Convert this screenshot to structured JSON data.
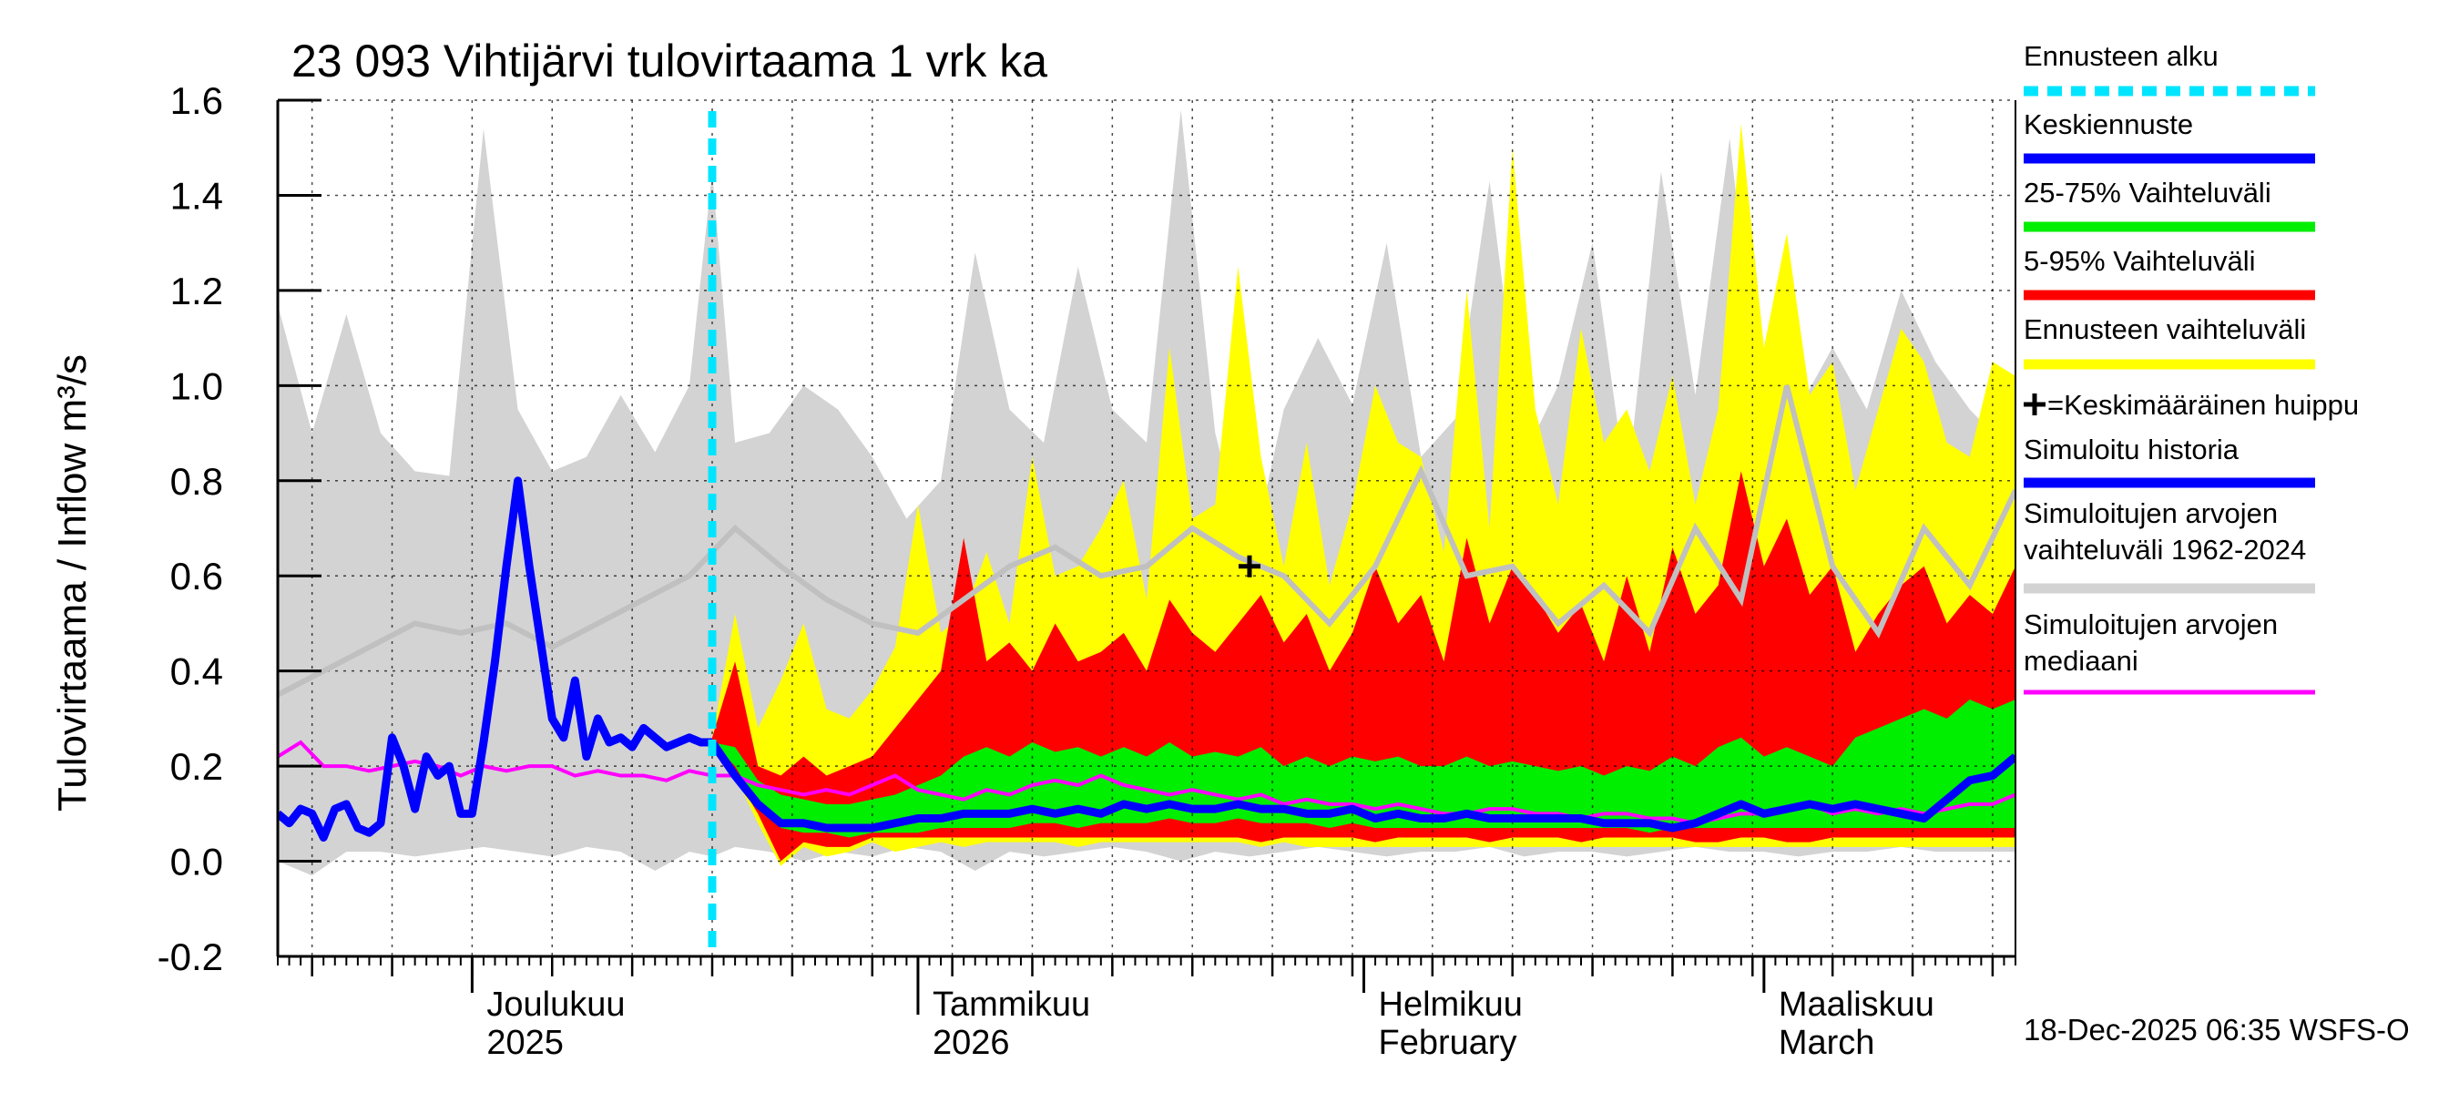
{
  "chart_data": {
    "type": "area",
    "title": "23 093 Vihtijärvi tulovirtaama 1 vrk ka",
    "ylabel": "Tulovirtaama / Inflow   m³/s",
    "ylim": [
      -0.2,
      1.6
    ],
    "yticks": [
      "-0.2",
      "0.0",
      "0.2",
      "0.4",
      "0.6",
      "0.8",
      "1.0",
      "1.2",
      "1.4",
      "1.6"
    ],
    "ytick_values": [
      -0.2,
      0.0,
      0.2,
      0.4,
      0.6,
      0.8,
      1.0,
      1.2,
      1.4,
      1.6
    ],
    "x_unit": "days since 2025-11-01",
    "xlim": [
      0,
      152
    ],
    "grid": true,
    "forecast_start_day": 38,
    "months": [
      {
        "day": 17,
        "line1": "Joulukuu",
        "line2": "2025",
        "year_tick": false
      },
      {
        "day": 56,
        "line1": "Tammikuu",
        "line2": "2026",
        "year_tick": true
      },
      {
        "day": 95,
        "line1": "Helmikuu",
        "line2": "February",
        "year_tick": false
      },
      {
        "day": 130,
        "line1": "Maaliskuu",
        "line2": "March",
        "year_tick": false
      }
    ],
    "colors": {
      "history_range": "#d3d3d3",
      "forecast_range": "#ffff00",
      "p5_95": "#ff0000",
      "p25_75": "#00ee00",
      "mean_forecast": "#0000ff",
      "simulated_history": "#0000ff",
      "median": "#ff00ff",
      "forecast_start": "#00e5ff",
      "envelope_line": "#c0c0c0"
    },
    "series": {
      "history_range_x": [
        0,
        3,
        6,
        9,
        12,
        15,
        18,
        21,
        24,
        27,
        30,
        33,
        36,
        38,
        40,
        43,
        46,
        49,
        52,
        55,
        58,
        61,
        64,
        67,
        70,
        73,
        76,
        79,
        82,
        85,
        88,
        91,
        94,
        97,
        100,
        103,
        106,
        109,
        112,
        115,
        118,
        121,
        124,
        127,
        130,
        133,
        136,
        139,
        142,
        145,
        148,
        152
      ],
      "history_range_low": [
        0.0,
        -0.03,
        0.02,
        0.02,
        0.01,
        0.02,
        0.03,
        0.02,
        0.01,
        0.03,
        0.02,
        -0.02,
        0.02,
        0.01,
        0.03,
        0.02,
        0.0,
        0.02,
        0.01,
        0.03,
        0.02,
        -0.02,
        0.02,
        0.01,
        0.02,
        0.03,
        0.02,
        0.0,
        0.02,
        0.01,
        0.02,
        0.03,
        0.02,
        0.01,
        0.02,
        0.02,
        0.03,
        0.01,
        0.02,
        0.02,
        0.01,
        0.02,
        0.03,
        0.02,
        0.02,
        0.01,
        0.02,
        0.02,
        0.03,
        0.02,
        0.02,
        0.02
      ],
      "history_range_high": [
        1.17,
        0.9,
        1.15,
        0.9,
        0.82,
        0.81,
        1.54,
        0.95,
        0.82,
        0.85,
        0.98,
        0.86,
        1.0,
        1.45,
        0.88,
        0.9,
        1.0,
        0.95,
        0.85,
        0.72,
        0.8,
        1.28,
        0.95,
        0.88,
        1.25,
        0.95,
        0.88,
        1.58,
        0.9,
        0.62,
        0.95,
        1.1,
        0.96,
        1.3,
        0.85,
        0.93,
        1.43,
        0.85,
        1.0,
        1.3,
        0.78,
        1.45,
        0.98,
        1.52,
        0.88,
        0.95,
        1.08,
        0.95,
        1.2,
        1.05,
        0.95,
        0.85
      ],
      "envelope_x": [
        0,
        4,
        8,
        12,
        16,
        20,
        24,
        28,
        32,
        36,
        40,
        44,
        48,
        52,
        56,
        60,
        64,
        68,
        72,
        76,
        80,
        84,
        88,
        92,
        96,
        100,
        104,
        108,
        112,
        116,
        120,
        124,
        128,
        132,
        136,
        140,
        144,
        148,
        152
      ],
      "envelope_line": [
        0.35,
        0.4,
        0.45,
        0.5,
        0.48,
        0.5,
        0.45,
        0.5,
        0.55,
        0.6,
        0.7,
        0.62,
        0.55,
        0.5,
        0.48,
        0.55,
        0.62,
        0.66,
        0.6,
        0.62,
        0.7,
        0.64,
        0.6,
        0.5,
        0.62,
        0.82,
        0.6,
        0.62,
        0.5,
        0.58,
        0.48,
        0.7,
        0.55,
        1.0,
        0.62,
        0.48,
        0.7,
        0.58,
        0.78
      ],
      "forecast_x": [
        38,
        40,
        42,
        44,
        46,
        48,
        50,
        52,
        54,
        56,
        58,
        60,
        62,
        64,
        66,
        68,
        70,
        72,
        74,
        76,
        78,
        80,
        82,
        84,
        86,
        88,
        90,
        92,
        94,
        96,
        98,
        100,
        102,
        104,
        106,
        108,
        110,
        112,
        114,
        116,
        118,
        120,
        122,
        124,
        126,
        128,
        130,
        132,
        134,
        136,
        138,
        140,
        142,
        144,
        146,
        148,
        150,
        152
      ],
      "forecast_range_low": [
        0.24,
        0.18,
        0.08,
        -0.01,
        0.03,
        0.01,
        0.02,
        0.04,
        0.02,
        0.03,
        0.04,
        0.03,
        0.04,
        0.04,
        0.04,
        0.04,
        0.03,
        0.04,
        0.04,
        0.04,
        0.04,
        0.04,
        0.04,
        0.04,
        0.03,
        0.04,
        0.03,
        0.03,
        0.03,
        0.03,
        0.03,
        0.03,
        0.03,
        0.03,
        0.03,
        0.03,
        0.03,
        0.03,
        0.03,
        0.03,
        0.03,
        0.03,
        0.03,
        0.03,
        0.03,
        0.03,
        0.03,
        0.03,
        0.03,
        0.03,
        0.03,
        0.03,
        0.03,
        0.03,
        0.03,
        0.03,
        0.03,
        0.03
      ],
      "forecast_range_high": [
        0.26,
        0.52,
        0.28,
        0.38,
        0.5,
        0.32,
        0.3,
        0.36,
        0.45,
        0.75,
        0.48,
        0.52,
        0.65,
        0.5,
        0.85,
        0.6,
        0.62,
        0.7,
        0.8,
        0.55,
        1.08,
        0.72,
        0.75,
        1.25,
        0.85,
        0.62,
        0.88,
        0.58,
        0.75,
        1.0,
        0.88,
        0.85,
        0.65,
        1.2,
        0.7,
        1.5,
        0.95,
        0.75,
        1.12,
        0.88,
        0.95,
        0.82,
        1.02,
        0.75,
        0.95,
        1.55,
        1.08,
        1.32,
        0.98,
        1.05,
        0.78,
        0.95,
        1.12,
        1.05,
        0.88,
        0.85,
        1.05,
        1.02
      ],
      "p5": [
        0.24,
        0.18,
        0.1,
        0.0,
        0.04,
        0.03,
        0.03,
        0.05,
        0.05,
        0.05,
        0.05,
        0.05,
        0.05,
        0.05,
        0.05,
        0.05,
        0.05,
        0.05,
        0.05,
        0.05,
        0.05,
        0.05,
        0.05,
        0.05,
        0.04,
        0.05,
        0.05,
        0.05,
        0.05,
        0.04,
        0.05,
        0.05,
        0.05,
        0.05,
        0.04,
        0.05,
        0.05,
        0.05,
        0.04,
        0.05,
        0.05,
        0.05,
        0.05,
        0.04,
        0.04,
        0.05,
        0.05,
        0.04,
        0.04,
        0.05,
        0.05,
        0.05,
        0.05,
        0.05,
        0.05,
        0.05,
        0.05,
        0.05
      ],
      "p95": [
        0.26,
        0.42,
        0.2,
        0.18,
        0.22,
        0.18,
        0.2,
        0.22,
        0.28,
        0.34,
        0.4,
        0.68,
        0.42,
        0.46,
        0.4,
        0.5,
        0.42,
        0.44,
        0.48,
        0.4,
        0.55,
        0.48,
        0.44,
        0.5,
        0.56,
        0.46,
        0.52,
        0.4,
        0.48,
        0.62,
        0.5,
        0.56,
        0.42,
        0.68,
        0.5,
        0.62,
        0.56,
        0.48,
        0.54,
        0.42,
        0.6,
        0.44,
        0.66,
        0.52,
        0.58,
        0.82,
        0.62,
        0.72,
        0.56,
        0.62,
        0.44,
        0.52,
        0.58,
        0.62,
        0.5,
        0.56,
        0.52,
        0.62
      ],
      "p25": [
        0.25,
        0.2,
        0.12,
        0.07,
        0.06,
        0.06,
        0.05,
        0.06,
        0.06,
        0.06,
        0.07,
        0.07,
        0.07,
        0.07,
        0.08,
        0.08,
        0.07,
        0.08,
        0.08,
        0.08,
        0.09,
        0.08,
        0.08,
        0.09,
        0.08,
        0.08,
        0.08,
        0.07,
        0.08,
        0.07,
        0.07,
        0.07,
        0.07,
        0.07,
        0.07,
        0.07,
        0.07,
        0.07,
        0.07,
        0.07,
        0.07,
        0.06,
        0.07,
        0.07,
        0.07,
        0.07,
        0.07,
        0.07,
        0.07,
        0.07,
        0.07,
        0.07,
        0.07,
        0.07,
        0.07,
        0.07,
        0.07,
        0.07
      ],
      "p75": [
        0.25,
        0.24,
        0.17,
        0.14,
        0.13,
        0.12,
        0.12,
        0.13,
        0.14,
        0.16,
        0.18,
        0.22,
        0.24,
        0.22,
        0.25,
        0.23,
        0.24,
        0.22,
        0.24,
        0.22,
        0.25,
        0.22,
        0.23,
        0.22,
        0.24,
        0.2,
        0.22,
        0.2,
        0.22,
        0.21,
        0.22,
        0.2,
        0.2,
        0.22,
        0.2,
        0.21,
        0.2,
        0.19,
        0.2,
        0.18,
        0.2,
        0.19,
        0.22,
        0.2,
        0.24,
        0.26,
        0.22,
        0.24,
        0.22,
        0.2,
        0.26,
        0.28,
        0.3,
        0.32,
        0.3,
        0.34,
        0.32,
        0.34
      ],
      "mean_forecast": [
        0.25,
        0.18,
        0.12,
        0.08,
        0.08,
        0.07,
        0.07,
        0.07,
        0.08,
        0.09,
        0.09,
        0.1,
        0.1,
        0.1,
        0.11,
        0.1,
        0.11,
        0.1,
        0.12,
        0.11,
        0.12,
        0.11,
        0.11,
        0.12,
        0.11,
        0.11,
        0.1,
        0.1,
        0.11,
        0.09,
        0.1,
        0.09,
        0.09,
        0.1,
        0.09,
        0.09,
        0.09,
        0.09,
        0.09,
        0.08,
        0.08,
        0.08,
        0.07,
        0.08,
        0.1,
        0.12,
        0.1,
        0.11,
        0.12,
        0.11,
        0.12,
        0.11,
        0.1,
        0.09,
        0.13,
        0.17,
        0.18,
        0.22
      ],
      "history_x": [
        0,
        1,
        2,
        3,
        4,
        5,
        6,
        7,
        8,
        9,
        10,
        11,
        12,
        13,
        14,
        15,
        16,
        17,
        18,
        19,
        20,
        21,
        22,
        23,
        24,
        25,
        26,
        27,
        28,
        29,
        30,
        31,
        32,
        33,
        34,
        35,
        36,
        37,
        38
      ],
      "simulated_history": [
        0.1,
        0.08,
        0.11,
        0.1,
        0.05,
        0.11,
        0.12,
        0.07,
        0.06,
        0.08,
        0.26,
        0.2,
        0.11,
        0.22,
        0.18,
        0.2,
        0.1,
        0.1,
        0.25,
        0.42,
        0.62,
        0.8,
        0.62,
        0.46,
        0.3,
        0.26,
        0.38,
        0.22,
        0.3,
        0.25,
        0.26,
        0.24,
        0.28,
        0.26,
        0.24,
        0.25,
        0.26,
        0.25,
        0.25
      ],
      "median_x": [
        0,
        2,
        4,
        6,
        8,
        10,
        12,
        14,
        16,
        18,
        20,
        22,
        24,
        26,
        28,
        30,
        32,
        34,
        36,
        38,
        40,
        42,
        44,
        46,
        48,
        50,
        52,
        54,
        56,
        58,
        60,
        62,
        64,
        66,
        68,
        70,
        72,
        74,
        76,
        78,
        80,
        82,
        84,
        86,
        88,
        90,
        92,
        94,
        96,
        98,
        100,
        102,
        104,
        106,
        108,
        110,
        112,
        114,
        116,
        118,
        120,
        122,
        124,
        126,
        128,
        130,
        132,
        134,
        136,
        138,
        140,
        142,
        144,
        146,
        148,
        150,
        152
      ],
      "median": [
        0.22,
        0.25,
        0.2,
        0.2,
        0.19,
        0.2,
        0.21,
        0.2,
        0.18,
        0.2,
        0.19,
        0.2,
        0.2,
        0.18,
        0.19,
        0.18,
        0.18,
        0.17,
        0.19,
        0.18,
        0.18,
        0.16,
        0.15,
        0.14,
        0.15,
        0.14,
        0.16,
        0.18,
        0.15,
        0.14,
        0.13,
        0.15,
        0.14,
        0.16,
        0.17,
        0.16,
        0.18,
        0.16,
        0.15,
        0.14,
        0.15,
        0.14,
        0.13,
        0.14,
        0.12,
        0.13,
        0.12,
        0.12,
        0.11,
        0.12,
        0.11,
        0.1,
        0.1,
        0.11,
        0.11,
        0.1,
        0.1,
        0.09,
        0.1,
        0.1,
        0.09,
        0.09,
        0.08,
        0.09,
        0.1,
        0.1,
        0.11,
        0.12,
        0.1,
        0.11,
        0.1,
        0.11,
        0.1,
        0.11,
        0.12,
        0.12,
        0.14
      ]
    },
    "mean_peak": {
      "day": 85,
      "value": 0.62
    },
    "legend": [
      {
        "key": "forecast_start",
        "label": "Ennusteen alku",
        "style": "dashed"
      },
      {
        "key": "mean_forecast",
        "label": "Keskiennuste",
        "style": "solid"
      },
      {
        "key": "p25_75",
        "label": "25-75% Vaihteluväli",
        "style": "solid"
      },
      {
        "key": "p5_95",
        "label": "5-95% Vaihteluväli",
        "style": "solid"
      },
      {
        "key": "forecast_range",
        "label": "Ennusteen vaihteluväli",
        "style": "solid"
      },
      {
        "key": "mean_peak",
        "label": "=Keskimääräinen huippu",
        "style": "marker"
      },
      {
        "key": "simulated_history",
        "label": "Simuloitu historia",
        "style": "solid"
      },
      {
        "key": "history_range",
        "label": [
          "Simuloitujen arvojen",
          "vaihteluväli 1962-2024"
        ],
        "style": "solid"
      },
      {
        "key": "median",
        "label": [
          "Simuloitujen arvojen",
          "mediaani"
        ],
        "style": "solid"
      }
    ],
    "footer": "18-Dec-2025 06:35 WSFS-O"
  }
}
